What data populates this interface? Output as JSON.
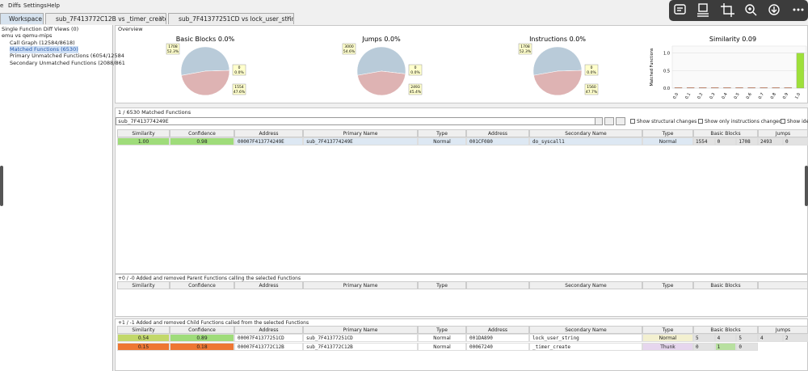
{
  "menu": [
    "e",
    "Diffs",
    "Settings",
    "Help"
  ],
  "tabs": [
    "Workspace",
    "sub_7F413772C12B vs _timer_create",
    "sub_7F41377251CD vs lock_user_string"
  ],
  "tree": [
    "Single Function Diff Views (0)",
    "emu vs qemu-mips",
    "Call Graph (12584/8618)",
    "Matched Functions (6530)",
    "Primary Unmatched Functions (6054/12584",
    "Secondary Unmatched Functions (2088/861"
  ],
  "overview": {
    "title": "Overview",
    "pies": [
      {
        "title": "Basic Blocks 0.0%",
        "slices": [
          {
            "count": "1708",
            "percent": 52.3,
            "percent_label": "52.3%"
          },
          {
            "count": "0",
            "percent": 0,
            "percent_label": "0.0%"
          },
          {
            "count": "1554",
            "percent": 47.6,
            "percent_label": "47.6%"
          }
        ]
      },
      {
        "title": "Jumps 0.0%",
        "slices": [
          {
            "count": "3000",
            "percent": 54.6,
            "percent_label": "54.6%"
          },
          {
            "count": "0",
            "percent": 0,
            "percent_label": "0.0%"
          },
          {
            "count": "2493",
            "percent": 45.4,
            "percent_label": "45.4%"
          }
        ]
      },
      {
        "title": "Instructions 0.0%",
        "slices": [
          {
            "count": "1708",
            "percent": 52.3,
            "percent_label": "52.3%"
          },
          {
            "count": "0",
            "percent": 0,
            "percent_label": "0.0%"
          },
          {
            "count": "1560",
            "percent": 47.7,
            "percent_label": "47.7%"
          }
        ]
      }
    ],
    "similarity": {
      "type": "bar",
      "title": "Similarity 0.09",
      "y_label": "Matched Functions",
      "categories": [
        "0.0",
        "0.1",
        "0.2",
        "0.3",
        "0.4",
        "0.5",
        "0.6",
        "0.7",
        "0.8",
        "0.9",
        "1.0"
      ],
      "values": [
        0.02,
        0.02,
        0.02,
        0.02,
        0.02,
        0.02,
        0.02,
        0.02,
        0.02,
        0.02,
        1.0
      ],
      "colors": [
        "#f08a5d",
        "#f08a5d",
        "#f08a5d",
        "#f08a5d",
        "#f08a5d",
        "#f08a5d",
        "#f08a5d",
        "#f08a5d",
        "#f08a5d",
        "#f08a5d",
        "#9ee03a"
      ],
      "ylim": [
        0,
        1.2
      ],
      "yticks": [
        {
          "value": 0,
          "label": "0.0"
        },
        {
          "value": 0.5,
          "label": "0.5"
        },
        {
          "value": 1,
          "label": "1.0"
        }
      ]
    }
  },
  "matched": {
    "title": "1 / 6530 Matched Functions",
    "search": "sub_7F413774249E",
    "checks": [
      "Show structural changes",
      "Show only instructions changed",
      "Show ide"
    ],
    "columns": [
      "Similarity",
      "Confidence",
      "Address",
      "Primary Name",
      "Type",
      "Address",
      "Secondary Name",
      "Type",
      "Basic Blocks",
      "Jumps"
    ],
    "rows": [
      {
        "cells": [
          "1.00",
          "0.98",
          "00007F413774249E",
          "sub_7F413774249E",
          "Normal",
          "001CF080",
          "do_syscall1",
          "Normal",
          [
            "1554",
            "0",
            "1708"
          ],
          [
            "2493",
            "0"
          ]
        ],
        "similarity_color": "#9fdc7a",
        "confidence_color": "#9fdc7a"
      }
    ]
  },
  "parent": {
    "title": "+0 / -0 Added and removed Parent Functions calling the selected Functions",
    "columns": [
      "Similarity",
      "Confidence",
      "Address",
      "Primary Name",
      "Type",
      null,
      "Secondary Name",
      "Type",
      "Basic Blocks",
      null
    ],
    "rows": []
  },
  "child": {
    "title": "+1 / -1 Added and removed Child Functions called from the selected Functions",
    "columns": [
      "Similarity",
      "Confidence",
      "Address",
      "Primary Name",
      "Type",
      "Address",
      "Secondary Name",
      "Type",
      "Basic Blocks",
      "Jumps"
    ],
    "rows": [
      {
        "cells": [
          "0.54",
          "0.89",
          "00007F41377251CD",
          "sub_7F41377251CD",
          "Normal",
          "001DA890",
          "lock_user_string",
          "Normal",
          [
            "5",
            "4",
            "5"
          ],
          [
            "4",
            "2"
          ]
        ],
        "similarity_color": "#c2d86a",
        "confidence_color": "#9fdc7a"
      },
      {
        "cells": [
          "0.15",
          "0.18",
          "00007F413772C12B",
          "sub_7F413772C12B",
          "Normal",
          "00067240",
          "_timer_create",
          "Thunk",
          [
            "0",
            "1",
            "0"
          ]
        ],
        "similarity_color": "#ee7733",
        "confidence_color": "#ee7733"
      }
    ]
  }
}
